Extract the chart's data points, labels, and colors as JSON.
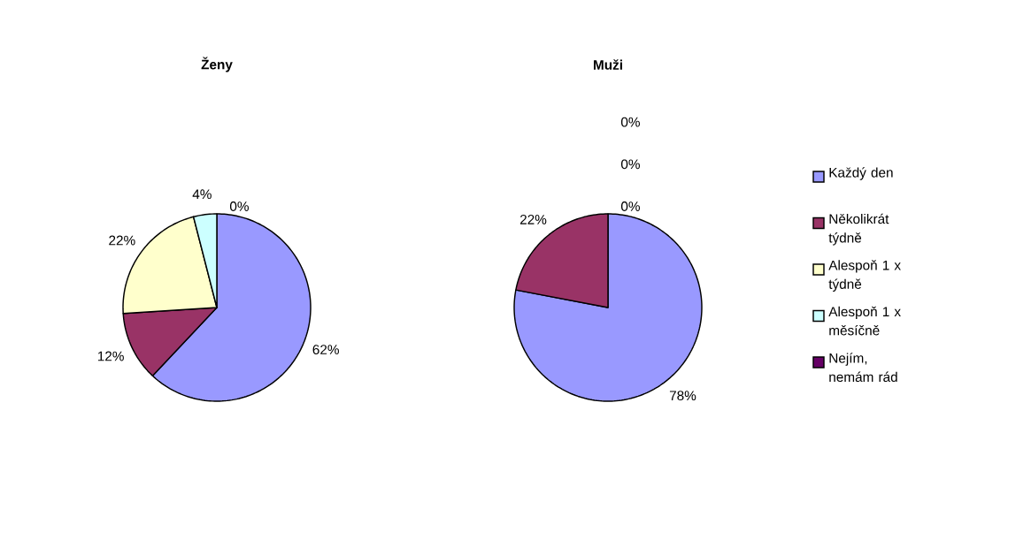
{
  "chart_data": [
    {
      "type": "pie",
      "title": "Ženy",
      "categories": [
        null,
        null,
        null,
        null,
        null
      ],
      "values": [
        62,
        12,
        22,
        4,
        0
      ],
      "colors": [
        "#9999ff",
        "#993366",
        "#ffffcc",
        "#ccffff",
        "#660066"
      ],
      "value_labels": [
        "62%",
        "12%",
        "22%",
        "4%",
        "0%"
      ],
      "legend": false
    },
    {
      "type": "pie",
      "title": "Muži",
      "categories": [
        "Každý den",
        "Několikrát týdně",
        "Alespoň 1 x týdně",
        "Alespoň 1 x měsíčně",
        "Nejím, nemám rád"
      ],
      "values": [
        78,
        22,
        0,
        0,
        0
      ],
      "colors": [
        "#9999ff",
        "#993366",
        "#ffffcc",
        "#ccffff",
        "#660066"
      ],
      "value_labels": [
        "78%",
        "22%",
        "0%",
        "0%",
        "0%"
      ],
      "legend": "right"
    }
  ]
}
